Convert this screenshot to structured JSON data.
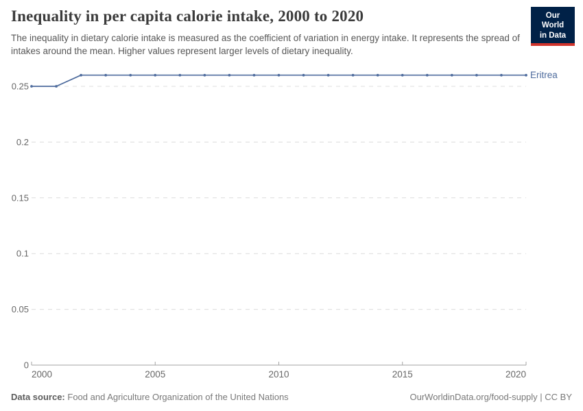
{
  "header": {
    "title": "Inequality in per capita calorie intake, 2000 to 2020",
    "subtitle": "The inequality in dietary calorie intake is measured as the coefficient of variation in energy intake. It represents the spread of intakes around the mean. Higher values represent larger levels of dietary inequality.",
    "logo": {
      "line1": "Our World",
      "line2": "in Data"
    }
  },
  "chart_data": {
    "type": "line",
    "title": "Inequality in per capita calorie intake, 2000 to 2020",
    "xlabel": "",
    "ylabel": "",
    "x": [
      2000,
      2001,
      2002,
      2003,
      2004,
      2005,
      2006,
      2007,
      2008,
      2009,
      2010,
      2011,
      2012,
      2013,
      2014,
      2015,
      2016,
      2017,
      2018,
      2019,
      2020
    ],
    "series": [
      {
        "name": "Eritrea",
        "color": "#4C6A9C",
        "values": [
          0.25,
          0.25,
          0.26,
          0.26,
          0.26,
          0.26,
          0.26,
          0.26,
          0.26,
          0.26,
          0.26,
          0.26,
          0.26,
          0.26,
          0.26,
          0.26,
          0.26,
          0.26,
          0.26,
          0.26,
          0.26
        ]
      }
    ],
    "xlim": [
      2000,
      2020
    ],
    "ylim": [
      0,
      0.266
    ],
    "xticks": [
      2000,
      2005,
      2010,
      2015,
      2020
    ],
    "yticks": [
      0,
      0.05,
      0.1,
      0.15,
      0.2,
      0.25
    ],
    "ytick_labels": [
      "0",
      "0.05",
      "0.1",
      "0.15",
      "0.2",
      "0.25"
    ],
    "grid": "horizontal-dashed",
    "legend_position": "end-of-line-label"
  },
  "footer": {
    "datasource_label": "Data source:",
    "datasource_text": "Food and Agriculture Organization of the United Nations",
    "link_text": "OurWorldinData.org/food-supply | CC BY"
  },
  "colors": {
    "line": "#4C6A9C",
    "grid": "#dcdcdc",
    "axis": "#a3a3a3",
    "tick_text": "#666666",
    "title_text": "#3b3b3b",
    "subtitle_text": "#565656",
    "footer_text": "#787878",
    "logo_bg": "#002147",
    "logo_bar": "#d0342c"
  }
}
